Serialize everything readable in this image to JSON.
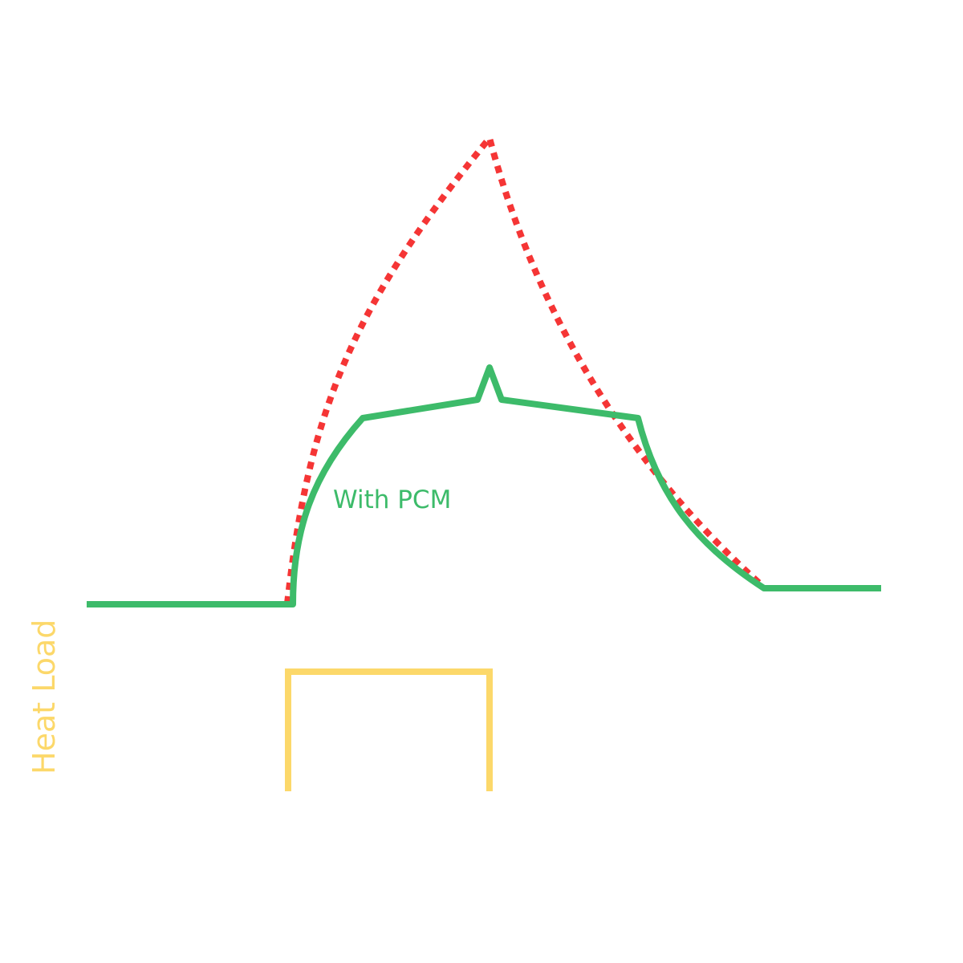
{
  "labels": {
    "with_pcm": "With PCM",
    "heat_load": "Heat Load"
  },
  "colors": {
    "with_pcm": "#3dbb6a",
    "without_pcm": "#f53535",
    "heat_load": "#fcd86a",
    "background": "#ffffff"
  },
  "series": {
    "with_pcm": {
      "line_style": "solid"
    },
    "without_pcm": {
      "line_style": "dotted"
    },
    "heat_load": {
      "line_style": "solid"
    }
  }
}
